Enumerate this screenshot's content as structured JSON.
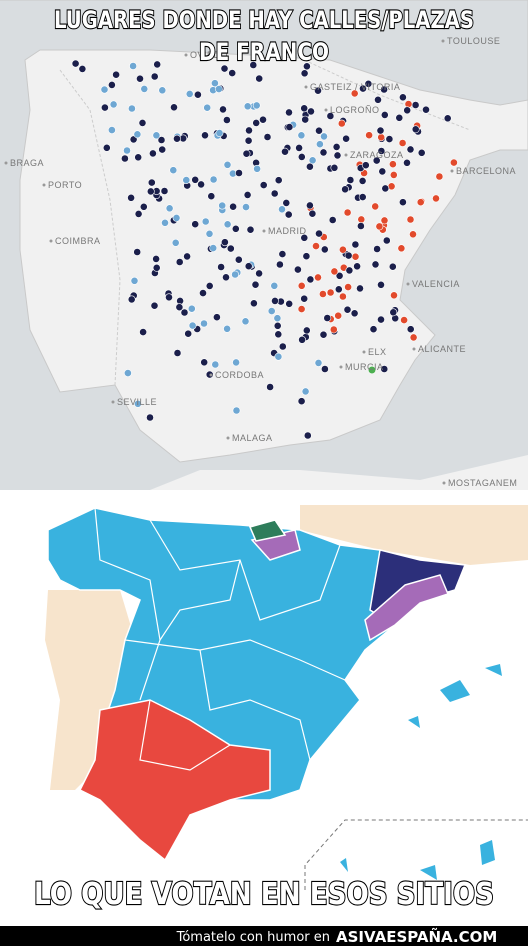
{
  "top_map": {
    "caption": [
      "LUGARES DONDE HAY CALLES/PLAZAS",
      "DE FRANCO"
    ],
    "labels": [
      "OVIEDO",
      "GASTEIZ / VITORIA",
      "LOGROÑO",
      "ZARAGOZA",
      "BARCELONA",
      "BRAGA",
      "PORTO",
      "COIMBRA",
      "MADRID",
      "VALENCIA",
      "ALICANTE",
      "ELX",
      "MURCIA",
      "CORDOBA",
      "SEVILLE",
      "MALAGA",
      "TOULOUSE",
      "MOSTAGANEM"
    ]
  },
  "bottom_map": {
    "caption": "LO QUE VOTAN EN ESOS SITIOS"
  },
  "footer": {
    "text": "Tómatelo con humor en",
    "brand": "ASIVAESPAÑA.COM"
  }
}
